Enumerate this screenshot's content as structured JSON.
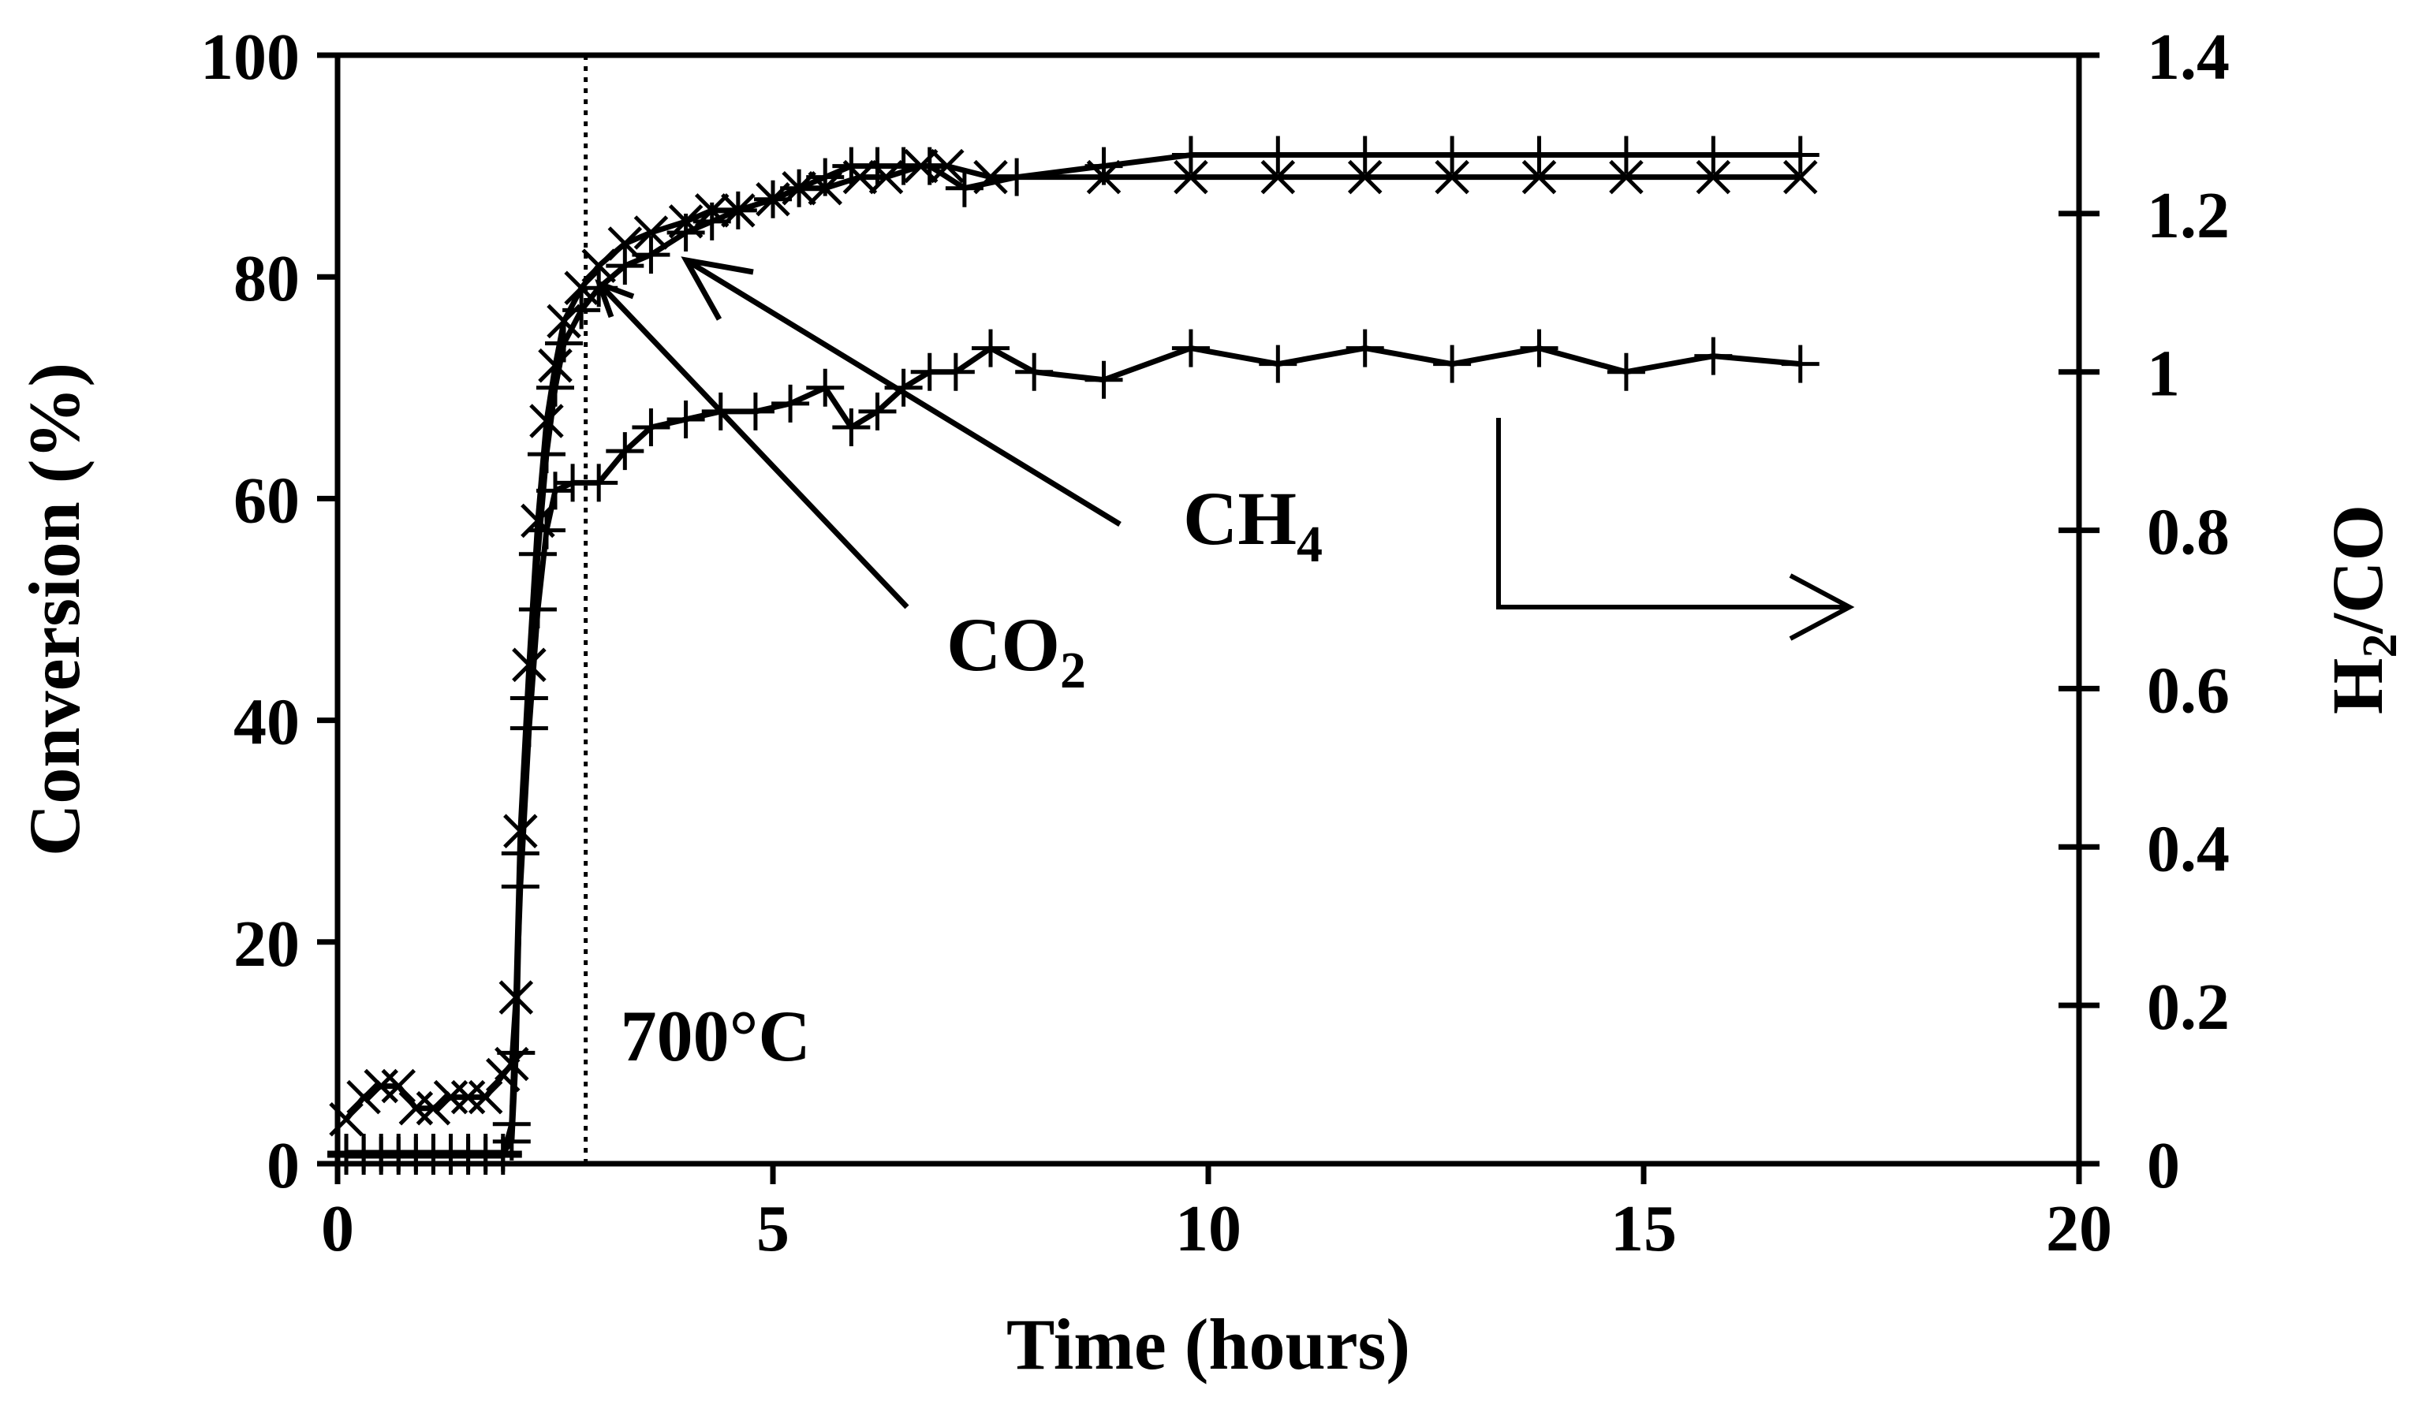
{
  "chart_data": {
    "type": "line",
    "xlabel": "Time (hours)",
    "ylabel": "Conversion (%)",
    "y2label": "H2/CO",
    "y2label_main": "H",
    "y2label_sub": "2",
    "y2label_rest": "/CO",
    "xlim": [
      0,
      20
    ],
    "ylim": [
      0,
      100
    ],
    "y2lim": [
      0,
      1.4
    ],
    "xticks": [
      0,
      5,
      10,
      15,
      20
    ],
    "xtick_labels": [
      "0",
      "5",
      "10",
      "15",
      "20"
    ],
    "yticks": [
      0,
      20,
      40,
      60,
      80,
      100
    ],
    "ytick_labels": [
      "0",
      "20",
      "40",
      "60",
      "80",
      "100"
    ],
    "y2ticks": [
      0,
      0.2,
      0.4,
      0.6,
      0.8,
      1.0,
      1.2,
      1.4
    ],
    "y2tick_labels": [
      "0",
      "0.2",
      "0.4",
      "0.6",
      "0.8",
      "1",
      "1.2",
      "1.4"
    ],
    "grid": false,
    "legend": "none",
    "series": [
      {
        "axis": "left",
        "marker": "x",
        "x": [
          0.1,
          0.3,
          0.5,
          0.7,
          0.9,
          1.1,
          1.3,
          1.5,
          1.7,
          1.9,
          2.0,
          2.05,
          2.1,
          2.2,
          2.3,
          2.4,
          2.5,
          2.6,
          2.8,
          3.0,
          3.3,
          3.6,
          4.0,
          4.3,
          4.6,
          5.0,
          5.3,
          5.6,
          6.0,
          6.3,
          6.7,
          7.0,
          7.5,
          8.8,
          9.8,
          10.8,
          11.8,
          12.8,
          13.8,
          14.8,
          15.8,
          16.8
        ],
        "y": [
          4,
          6,
          7,
          7,
          5,
          5,
          6,
          6,
          6,
          8,
          9,
          15,
          30,
          45,
          58,
          67,
          72,
          76,
          79,
          81,
          83,
          84,
          85,
          86,
          86,
          87,
          88,
          88,
          89,
          89,
          90,
          90,
          89,
          89,
          89,
          89,
          89,
          89,
          89,
          89,
          89,
          89
        ]
      },
      {
        "axis": "left",
        "marker": "+",
        "x": [
          0.1,
          0.3,
          0.5,
          0.7,
          0.9,
          1.1,
          1.3,
          1.5,
          1.7,
          1.9,
          2.0,
          2.05,
          2.1,
          2.2,
          2.3,
          2.4,
          2.5,
          2.6,
          2.8,
          3.0,
          3.3,
          3.6,
          4.0,
          4.3,
          4.6,
          5.0,
          5.3,
          5.6,
          5.9,
          6.2,
          6.5,
          6.8,
          7.2,
          7.8,
          8.8,
          9.8,
          10.8,
          11.8,
          12.8,
          13.8,
          14.8,
          15.8,
          16.8
        ],
        "y": [
          1,
          1,
          1,
          1,
          1,
          1,
          1,
          1,
          1,
          1,
          2,
          10,
          28,
          42,
          55,
          64,
          70,
          74,
          77,
          79,
          81,
          82,
          84,
          85,
          86,
          87,
          88,
          89,
          90,
          90,
          90,
          90,
          88,
          89,
          90,
          91,
          91,
          91,
          91,
          91,
          91,
          91,
          91
        ]
      },
      {
        "axis": "right",
        "marker": "+",
        "x": [
          0.1,
          0.3,
          0.5,
          0.7,
          0.9,
          1.1,
          1.3,
          1.5,
          1.7,
          1.9,
          2.0,
          2.1,
          2.2,
          2.3,
          2.4,
          2.5,
          2.7,
          3.0,
          3.3,
          3.6,
          4.0,
          4.4,
          4.8,
          5.2,
          5.6,
          5.9,
          6.2,
          6.5,
          6.8,
          7.1,
          7.5,
          8.0,
          8.8,
          9.8,
          10.8,
          11.8,
          12.8,
          13.8,
          14.8,
          15.8,
          16.8
        ],
        "y": [
          0.01,
          0.01,
          0.01,
          0.01,
          0.01,
          0.01,
          0.01,
          0.01,
          0.01,
          0.01,
          0.05,
          0.35,
          0.55,
          0.7,
          0.8,
          0.85,
          0.86,
          0.86,
          0.9,
          0.93,
          0.94,
          0.95,
          0.95,
          0.96,
          0.98,
          0.93,
          0.95,
          0.98,
          1.0,
          1.0,
          1.03,
          1.0,
          0.99,
          1.03,
          1.01,
          1.03,
          1.01,
          1.03,
          1.0,
          1.02,
          1.01
        ]
      }
    ],
    "vline": {
      "x": 2.85,
      "style": "dotted",
      "label": "700°C"
    },
    "annotations": [
      {
        "name": "ch4",
        "main": "CH",
        "sub": "4"
      },
      {
        "name": "co2",
        "main": "CO",
        "sub": "2"
      }
    ]
  }
}
